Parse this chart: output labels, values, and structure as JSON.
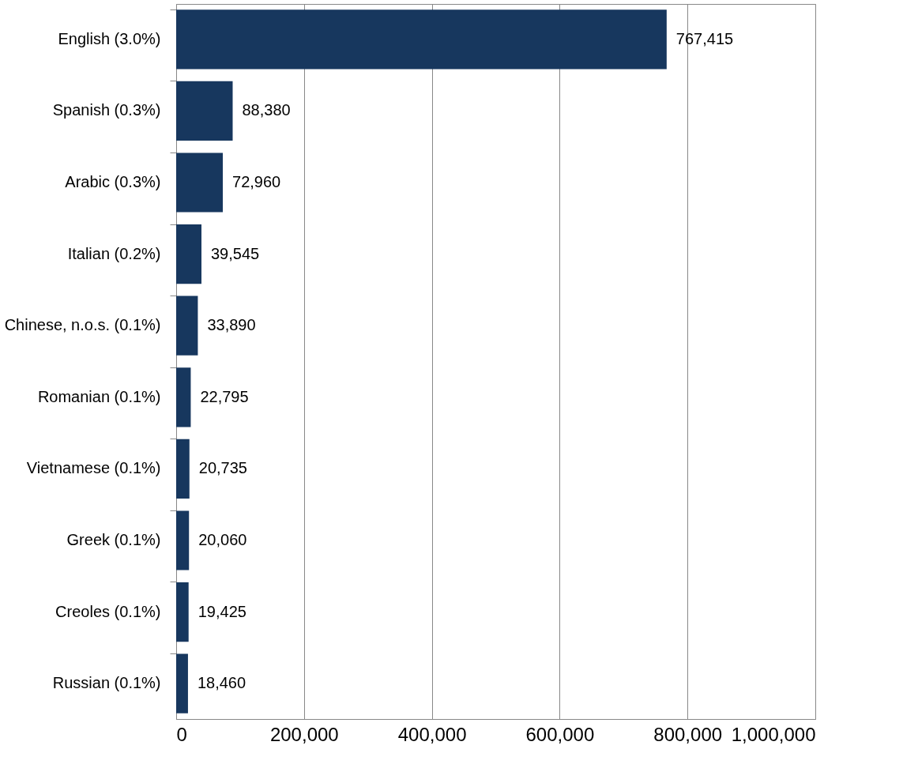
{
  "chart_data": {
    "type": "bar",
    "orientation": "horizontal",
    "categories": [
      "English (3.0%)",
      "Spanish (0.3%)",
      "Arabic (0.3%)",
      "Italian (0.2%)",
      "Chinese, n.o.s. (0.1%)",
      "Romanian (0.1%)",
      "Vietnamese (0.1%)",
      "Greek (0.1%)",
      "Creoles (0.1%)",
      "Russian (0.1%)"
    ],
    "values": [
      767415,
      88380,
      72960,
      39545,
      33890,
      22795,
      20735,
      20060,
      19425,
      18460
    ],
    "color": "#17375e",
    "value_labels": [
      "767,415",
      "88,380",
      "72,960",
      "39,545",
      "33,890",
      "22,795",
      "20,735",
      "20,060",
      "19,425",
      "18,460"
    ],
    "xlim": [
      0,
      1000000
    ],
    "xticks": [
      0,
      {
        "value": 200000,
        "label": "200,000"
      },
      {
        "value": 400000,
        "label": "400,000"
      },
      {
        "value": 600000,
        "label": "600,000"
      },
      {
        "value": 800000,
        "label": "800,000"
      },
      {
        "value": 1000000,
        "label": "1,000,000"
      }
    ],
    "grid": "x"
  }
}
